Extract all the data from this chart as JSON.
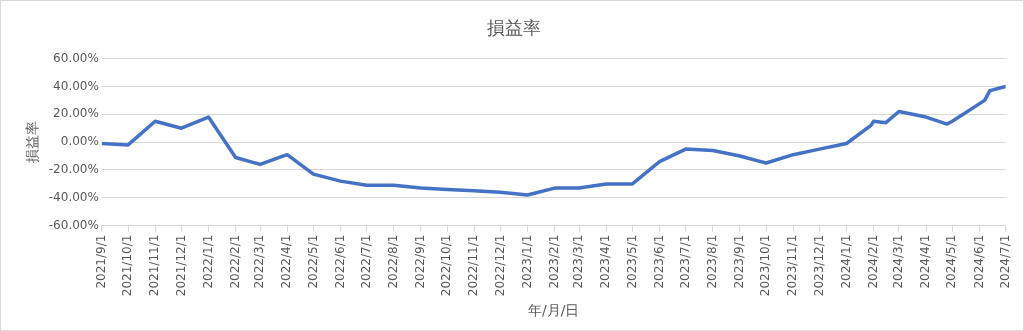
{
  "chart_data": {
    "type": "line",
    "title": "損益率",
    "xlabel": "年/月/日",
    "ylabel": "損益率",
    "x": [
      "2021-09-01",
      "2021-10-01",
      "2021-11-01",
      "2021-12-01",
      "2022-01-01",
      "2022-02-01",
      "2022-03-01",
      "2022-04-01",
      "2022-05-01",
      "2022-06-01",
      "2022-07-01",
      "2022-08-01",
      "2022-09-01",
      "2022-10-01",
      "2022-11-01",
      "2022-12-01",
      "2023-01-01",
      "2023-02-01",
      "2023-03-01",
      "2023-04-01",
      "2023-05-01",
      "2023-06-01",
      "2023-07-01",
      "2023-08-01",
      "2023-09-01",
      "2023-10-01",
      "2023-11-01",
      "2023-12-01",
      "2024-01-01",
      "2024-01-29",
      "2024-02-01",
      "2024-02-15",
      "2024-03-01",
      "2024-04-01",
      "2024-04-25",
      "2024-05-01",
      "2024-06-07",
      "2024-06-13",
      "2024-07-01"
    ],
    "series": [
      {
        "color": "#4472c4",
        "values": [
          -1,
          -2,
          15,
          10,
          18,
          -11,
          -16,
          -9,
          -23,
          -28,
          -31,
          -31,
          -33,
          -34,
          -35,
          -36,
          -38,
          -33,
          -33,
          -30,
          -30,
          -14,
          -5,
          -6,
          -10,
          -15,
          -9,
          -5,
          -1,
          12,
          15,
          14,
          22,
          18,
          13,
          15,
          30,
          37,
          40
        ]
      }
    ],
    "xlim": [
      "2021-09-01",
      "2024-07-01"
    ],
    "xticks": [
      {
        "value": "2021-09-01",
        "label": "2021/9/1"
      },
      {
        "value": "2021-10-01",
        "label": "2021/10/1"
      },
      {
        "value": "2021-11-01",
        "label": "2021/11/1"
      },
      {
        "value": "2021-12-01",
        "label": "2021/12/1"
      },
      {
        "value": "2022-01-01",
        "label": "2022/1/1"
      },
      {
        "value": "2022-02-01",
        "label": "2022/2/1"
      },
      {
        "value": "2022-03-01",
        "label": "2022/3/1"
      },
      {
        "value": "2022-04-01",
        "label": "2022/4/1"
      },
      {
        "value": "2022-05-01",
        "label": "2022/5/1"
      },
      {
        "value": "2022-06-01",
        "label": "2022/6/1"
      },
      {
        "value": "2022-07-01",
        "label": "2022/7/1"
      },
      {
        "value": "2022-08-01",
        "label": "2022/8/1"
      },
      {
        "value": "2022-09-01",
        "label": "2022/9/1"
      },
      {
        "value": "2022-10-01",
        "label": "2022/10/1"
      },
      {
        "value": "2022-11-01",
        "label": "2022/11/1"
      },
      {
        "value": "2022-12-01",
        "label": "2022/12/1"
      },
      {
        "value": "2023-01-01",
        "label": "2023/1/1"
      },
      {
        "value": "2023-02-01",
        "label": "2023/2/1"
      },
      {
        "value": "2023-03-01",
        "label": "2023/3/1"
      },
      {
        "value": "2023-04-01",
        "label": "2023/4/1"
      },
      {
        "value": "2023-05-01",
        "label": "2023/5/1"
      },
      {
        "value": "2023-06-01",
        "label": "2023/6/1"
      },
      {
        "value": "2023-07-01",
        "label": "2023/7/1"
      },
      {
        "value": "2023-08-01",
        "label": "2023/8/1"
      },
      {
        "value": "2023-09-01",
        "label": "2023/9/1"
      },
      {
        "value": "2023-10-01",
        "label": "2023/10/1"
      },
      {
        "value": "2023-11-01",
        "label": "2023/11/1"
      },
      {
        "value": "2023-12-01",
        "label": "2023/12/1"
      },
      {
        "value": "2024-01-01",
        "label": "2024/1/1"
      },
      {
        "value": "2024-02-01",
        "label": "2024/2/1"
      },
      {
        "value": "2024-03-01",
        "label": "2024/3/1"
      },
      {
        "value": "2024-04-01",
        "label": "2024/4/1"
      },
      {
        "value": "2024-05-01",
        "label": "2024/5/1"
      },
      {
        "value": "2024-06-01",
        "label": "2024/6/1"
      },
      {
        "value": "2024-07-01",
        "label": "2024/7/1"
      }
    ],
    "ylim": [
      -60,
      60
    ],
    "yticks": [
      {
        "value": -60,
        "label": "-60.00%"
      },
      {
        "value": -40,
        "label": "-40.00%"
      },
      {
        "value": -20,
        "label": "-20.00%"
      },
      {
        "value": 0,
        "label": "0.00%"
      },
      {
        "value": 20,
        "label": "20.00%"
      },
      {
        "value": 40,
        "label": "40.00%"
      },
      {
        "value": 60,
        "label": "60.00%"
      }
    ],
    "grid": "y",
    "legend": false,
    "marker": "none",
    "line_style": "solid"
  }
}
